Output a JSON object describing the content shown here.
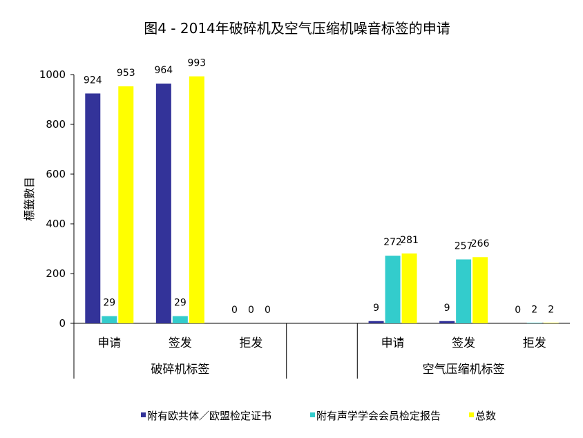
{
  "chart_data": {
    "type": "bar",
    "title": "图4 - 2014年破碎机及空气压缩机噪音标签的申请",
    "ylabel": "標籤數目",
    "xlabel": "",
    "ylim": [
      0,
      1000
    ],
    "yticks": [
      0,
      200,
      400,
      600,
      800,
      1000
    ],
    "grid": false,
    "legend_position": "bottom",
    "groups": [
      {
        "label": "破碎机标签",
        "categories": [
          "申请",
          "签发",
          "拒发"
        ]
      },
      {
        "label": "空气压缩机标签",
        "categories": [
          "申请",
          "签发",
          "拒发"
        ]
      }
    ],
    "series": [
      {
        "name": "附有欧共体／欧盟检定证书",
        "color": "#333399",
        "values": [
          924,
          964,
          0,
          9,
          9,
          0
        ]
      },
      {
        "name": "附有声学学会会员检定报告",
        "color": "#33CCCC",
        "values": [
          29,
          29,
          0,
          272,
          257,
          2
        ]
      },
      {
        "name": "总数",
        "color": "#FFFF00",
        "values": [
          953,
          993,
          0,
          281,
          266,
          2
        ]
      }
    ]
  }
}
